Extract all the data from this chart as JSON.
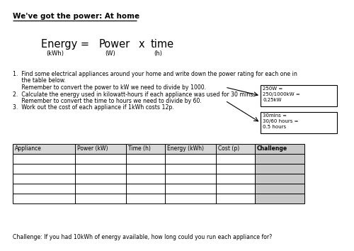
{
  "title": "We've got the power: At home",
  "box1_text": "250W =\n250/1000kW =\n0.25kW",
  "box2_text": "30mins =\n30/60 hours =\n0.5 hours",
  "table_headers": [
    "Appliance",
    "Power (kW)",
    "Time (h)",
    "Energy (kWh)",
    "Cost (p)",
    "Challenge"
  ],
  "num_data_rows": 5,
  "challenge_text": "Challenge: If you had 10kWh of energy available, how long could you run each appliance for?",
  "bg_color": "#ffffff",
  "table_header_shade": "#d8d8d8",
  "challenge_col_shade": "#c8c8c8",
  "inst1a": "1.  Find some electrical appliances around your home and write down the power rating for each one in",
  "inst1b": "     the table below.",
  "inst1c": "     Remember to convert the power to kW we need to divide by 1000.",
  "inst2a": "2.  Calculate the energy used in kilowatt-hours if each appliance was used for 30 mins.",
  "inst2b": "     Remember to convert the time to hours we need to divide by 60.",
  "inst3": "3.  Work out the cost of each appliance if 1kWh costs 12p.",
  "fig_w": 5.0,
  "fig_h": 3.54,
  "dpi": 100
}
